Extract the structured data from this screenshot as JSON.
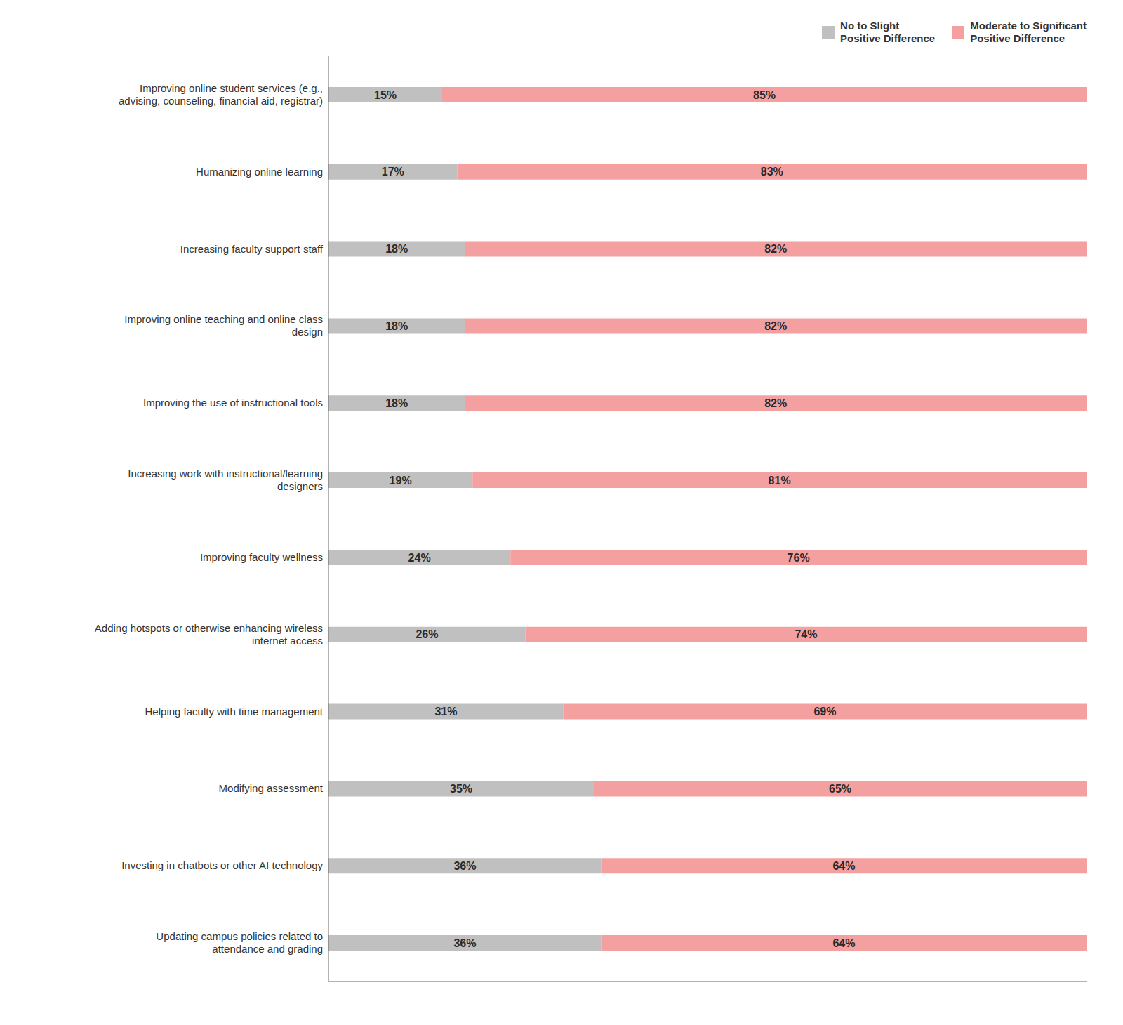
{
  "chart_data": {
    "type": "bar",
    "orientation": "horizontal",
    "stacked": true,
    "data_labels": true,
    "tick_labels": "y",
    "grid": false,
    "legend": "top",
    "categories": [
      "Improving online student services (e.g.,\nadvising, counseling, financial aid, registrar)",
      "Humanizing online learning",
      "Increasing faculty support staff",
      "Improving online teaching and online class\ndesign",
      "Improving the use of instructional tools",
      "Increasing work with instructional/learning\ndesigners",
      "Improving faculty wellness",
      "Adding hotspots or otherwise enhancing wireless\ninternet access",
      "Helping faculty with time management",
      "Modifying assessment",
      "Investing in chatbots or other AI technology",
      "Updating campus policies related to\nattendance and grading"
    ],
    "series": [
      {
        "name": "No to Slight\nPositive Difference",
        "color": "#c0c0c0",
        "values": [
          15,
          17,
          18,
          18,
          18,
          19,
          24,
          26,
          31,
          35,
          36,
          36
        ],
        "value_labels": [
          "15%",
          "17%",
          "18%",
          "18%",
          "18%",
          "19%",
          "24%",
          "26%",
          "31%",
          "35%",
          "36%",
          "36%"
        ]
      },
      {
        "name": "Moderate to Significant\nPositive Difference",
        "color": "#f4a0a0",
        "values": [
          85,
          83,
          82,
          82,
          82,
          81,
          76,
          74,
          69,
          65,
          64,
          64
        ],
        "value_labels": [
          "85%",
          "83%",
          "82%",
          "82%",
          "82%",
          "81%",
          "76%",
          "74%",
          "69%",
          "65%",
          "64%",
          "64%"
        ]
      }
    ],
    "xlim": [
      0,
      100
    ]
  }
}
